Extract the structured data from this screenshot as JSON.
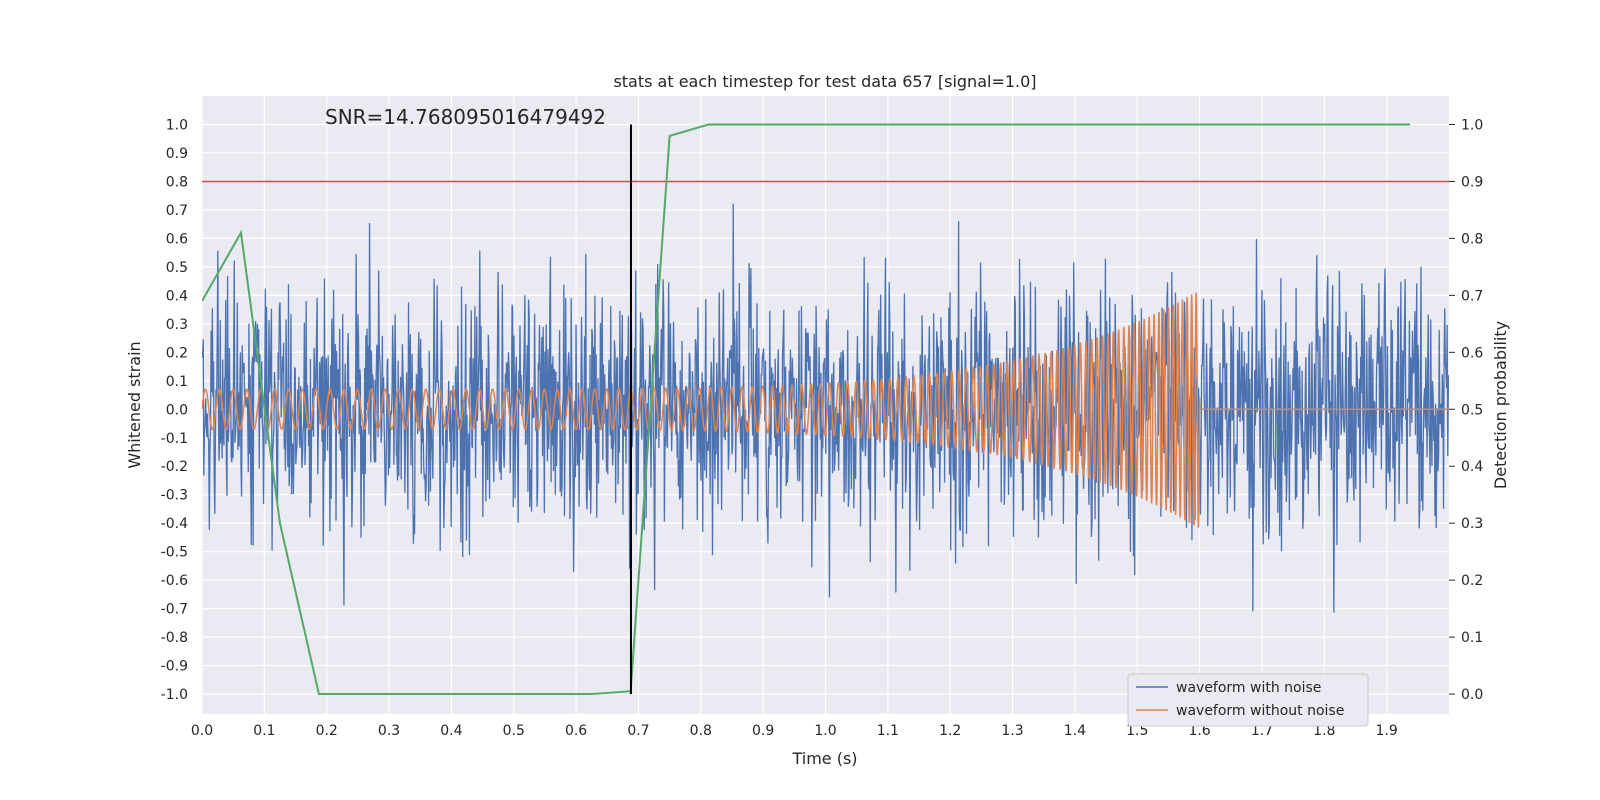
{
  "chart_data": {
    "type": "line",
    "title": "stats at each timestep for test data 657 [signal=1.0]",
    "xlabel": "Time (s)",
    "ylabel_left": "Whitened strain",
    "ylabel_right": "Detection probability",
    "annotation": "SNR=14.768095016479492",
    "xlim": [
      0.0,
      2.0
    ],
    "ylim_left": [
      -1.07,
      1.1
    ],
    "ylim_right": [
      -0.035,
      1.05
    ],
    "x_ticks": [
      0.0,
      0.1,
      0.2,
      0.3,
      0.4,
      0.5,
      0.6,
      0.7,
      0.8,
      0.9,
      1.0,
      1.1,
      1.2,
      1.3,
      1.4,
      1.5,
      1.6,
      1.7,
      1.8,
      1.9
    ],
    "x_tick_labels": [
      "0.0",
      "0.1",
      "0.2",
      "0.3",
      "0.4",
      "0.5",
      "0.6",
      "0.7",
      "0.8",
      "0.9",
      "1.0",
      "1.1",
      "1.2",
      "1.3",
      "1.4",
      "1.5",
      "1.6",
      "1.7",
      "1.8",
      "1.9"
    ],
    "y_left_ticks": [
      1.0,
      0.9,
      0.8,
      0.7,
      0.6,
      0.5,
      0.4,
      0.3,
      0.2,
      0.1,
      0.0,
      -0.1,
      -0.2,
      -0.3,
      -0.4,
      -0.5,
      -0.6,
      -0.7,
      -0.8,
      -0.9,
      -1.0
    ],
    "y_left_tick_labels": [
      "1.0",
      "0.9",
      "0.8",
      "0.7",
      "0.6",
      "0.5",
      "0.4",
      "0.3",
      "0.2",
      "0.1",
      "0.0",
      "-0.1",
      "-0.2",
      "-0.3",
      "-0.4",
      "-0.5",
      "-0.6",
      "-0.7",
      "-0.8",
      "-0.9",
      "-1.0"
    ],
    "y_right_ticks": [
      1.0,
      0.9,
      0.8,
      0.7,
      0.6,
      0.5,
      0.4,
      0.3,
      0.2,
      0.1,
      0.0
    ],
    "y_right_tick_labels": [
      "1.0",
      "0.9",
      "0.8",
      "0.7",
      "0.6",
      "0.5",
      "0.4",
      "0.3",
      "0.2",
      "0.1",
      "0.0"
    ],
    "threshold_line": {
      "axis": "right",
      "y": 0.9,
      "color": "#c44e52"
    },
    "vertical_marker": {
      "x": 0.688,
      "y_from": -1.0,
      "y_to": 1.0,
      "color": "#000000"
    },
    "series": [
      {
        "name": "waveform with noise",
        "axis": "left",
        "color": "#4c72b0",
        "generated": "noise",
        "x_range": [
          0.0,
          2.0
        ],
        "n_points": 2048,
        "sigma": 0.22,
        "seed": 657
      },
      {
        "name": "waveform without noise",
        "axis": "left",
        "color": "#dd8452",
        "generated": "chirp",
        "t_merger": 1.6,
        "start_freq_hz": 45,
        "end_freq_hz": 140,
        "start_amplitude": 0.07,
        "peak_amplitude": 0.42
      },
      {
        "name": "detection probability",
        "axis": "right",
        "color": "#55a868",
        "x": [
          0.0,
          0.0625,
          0.125,
          0.1875,
          0.25,
          0.3125,
          0.375,
          0.4375,
          0.5,
          0.5625,
          0.625,
          0.6875,
          0.75,
          0.8125,
          0.875,
          0.9375,
          1.0,
          1.0625,
          1.125,
          1.1875,
          1.25,
          1.3125,
          1.375,
          1.4375,
          1.5,
          1.5625,
          1.625,
          1.6875,
          1.75,
          1.8125,
          1.875,
          1.9375
        ],
        "y": [
          0.69,
          0.81,
          0.3,
          0.0,
          0.0,
          0.0,
          0.0,
          0.0,
          0.0,
          0.0,
          0.0,
          0.005,
          0.98,
          1.0,
          1.0,
          1.0,
          1.0,
          1.0,
          1.0,
          1.0,
          1.0,
          1.0,
          1.0,
          1.0,
          1.0,
          1.0,
          1.0,
          1.0,
          1.0,
          1.0,
          1.0,
          1.0
        ]
      }
    ],
    "legend": {
      "location": "lower-right",
      "entries": [
        {
          "label": "waveform with noise",
          "color": "#4c72b0"
        },
        {
          "label": "waveform without noise",
          "color": "#dd8452"
        }
      ]
    },
    "style": {
      "axes_background": "#eaeaf2",
      "grid_color": "#ffffff"
    }
  }
}
